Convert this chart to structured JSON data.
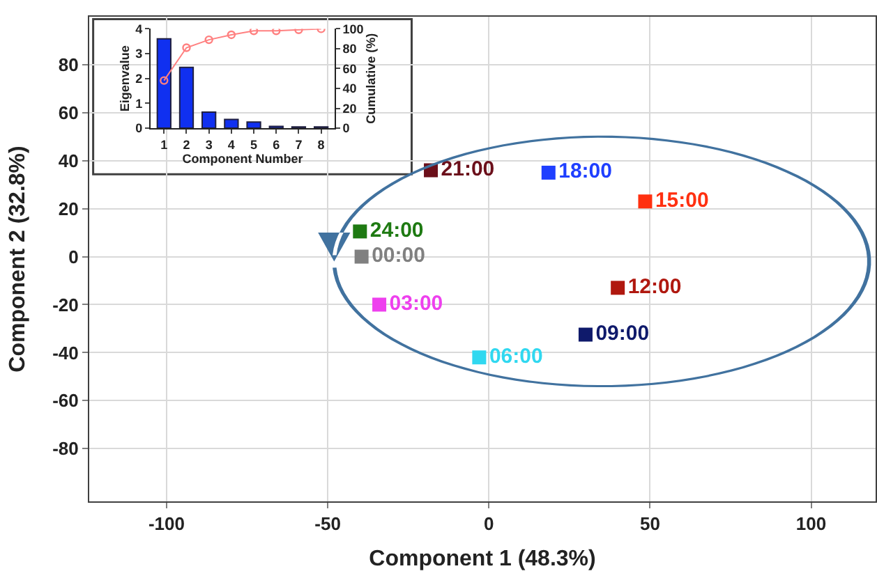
{
  "chart_data": [
    {
      "type": "scatter",
      "xlabel": "Component 1 (48.3%)",
      "ylabel": "Component 2 (32.8%)",
      "xlim": [
        -124,
        120
      ],
      "ylim": [
        -102,
        100
      ],
      "xticks": [
        -100,
        -50,
        0,
        50,
        100
      ],
      "yticks": [
        -80,
        -60,
        -40,
        -20,
        0,
        20,
        40,
        60,
        80
      ],
      "grid": true,
      "legend": false,
      "marker": "square",
      "series": [
        {
          "name": "21:00",
          "color": "#6b0f1a",
          "x": [
            -18
          ],
          "values": [
            36
          ]
        },
        {
          "name": "18:00",
          "color": "#1f3fff",
          "x": [
            18.5
          ],
          "values": [
            35
          ]
        },
        {
          "name": "15:00",
          "color": "#ff3010",
          "x": [
            48.5
          ],
          "values": [
            23
          ]
        },
        {
          "name": "24:00",
          "color": "#1e7a12",
          "x": [
            -40
          ],
          "values": [
            10.5
          ]
        },
        {
          "name": "00:00",
          "color": "#808080",
          "x": [
            -39.5
          ],
          "values": [
            0
          ]
        },
        {
          "name": "03:00",
          "color": "#ee40ee",
          "x": [
            -34
          ],
          "values": [
            -20
          ]
        },
        {
          "name": "12:00",
          "color": "#b0180f",
          "x": [
            40
          ],
          "values": [
            -13
          ]
        },
        {
          "name": "09:00",
          "color": "#0f1a6b",
          "x": [
            30
          ],
          "values": [
            -32.5
          ]
        },
        {
          "name": "06:00",
          "color": "#30d8f0",
          "x": [
            -3
          ],
          "values": [
            -42
          ]
        }
      ]
    },
    {
      "type": "bar",
      "categories": [
        "1",
        "2",
        "3",
        "4",
        "5",
        "6",
        "7",
        "8"
      ],
      "xlabel": "Component Number",
      "ylabel": "Eigenvalue",
      "y2label": "Cumulative (%)",
      "ylim": [
        0,
        4
      ],
      "yticks": [
        0,
        1,
        2,
        3,
        4
      ],
      "y2lim": [
        0,
        100
      ],
      "y2ticks": [
        0,
        20,
        40,
        60,
        80,
        100
      ],
      "series": [
        {
          "type": "bar",
          "color": "#1030f0",
          "values": [
            3.6,
            2.45,
            0.65,
            0.35,
            0.25,
            0.07,
            0.05,
            0.05
          ]
        },
        {
          "type": "line",
          "axis": "y2",
          "marker": "circle",
          "color": "#ff8080",
          "values": [
            48,
            81,
            89,
            94,
            98,
            98,
            99,
            100
          ]
        }
      ]
    }
  ]
}
